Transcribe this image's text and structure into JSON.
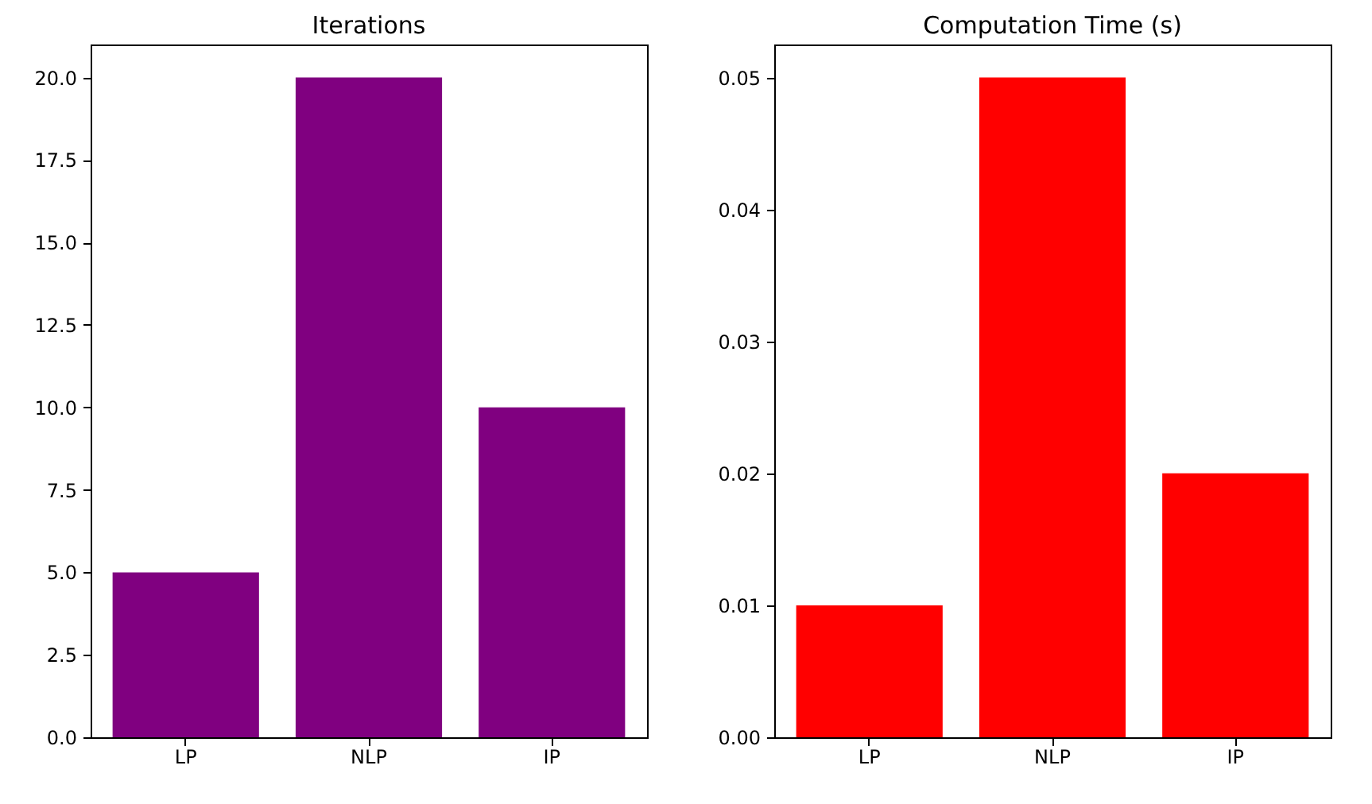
{
  "chart_data": [
    {
      "type": "bar",
      "title": "Iterations",
      "categories": [
        "LP",
        "NLP",
        "IP"
      ],
      "values": [
        5,
        20,
        10
      ],
      "color": "#800080",
      "ylim": [
        0,
        21
      ],
      "yticks": [
        {
          "value": 0,
          "label": "0.0"
        },
        {
          "value": 2.5,
          "label": "2.5"
        },
        {
          "value": 5,
          "label": "5.0"
        },
        {
          "value": 7.5,
          "label": "7.5"
        },
        {
          "value": 10,
          "label": "10.0"
        },
        {
          "value": 12.5,
          "label": "12.5"
        },
        {
          "value": 15,
          "label": "15.0"
        },
        {
          "value": 17.5,
          "label": "17.5"
        },
        {
          "value": 20,
          "label": "20.0"
        }
      ],
      "grid": false
    },
    {
      "type": "bar",
      "title": "Computation Time (s)",
      "categories": [
        "LP",
        "NLP",
        "IP"
      ],
      "values": [
        0.01,
        0.05,
        0.02
      ],
      "color": "#ff0000",
      "ylim": [
        0,
        0.0525
      ],
      "yticks": [
        {
          "value": 0,
          "label": "0.00"
        },
        {
          "value": 0.01,
          "label": "0.01"
        },
        {
          "value": 0.02,
          "label": "0.02"
        },
        {
          "value": 0.03,
          "label": "0.03"
        },
        {
          "value": 0.04,
          "label": "0.04"
        },
        {
          "value": 0.05,
          "label": "0.05"
        }
      ],
      "grid": false
    }
  ]
}
